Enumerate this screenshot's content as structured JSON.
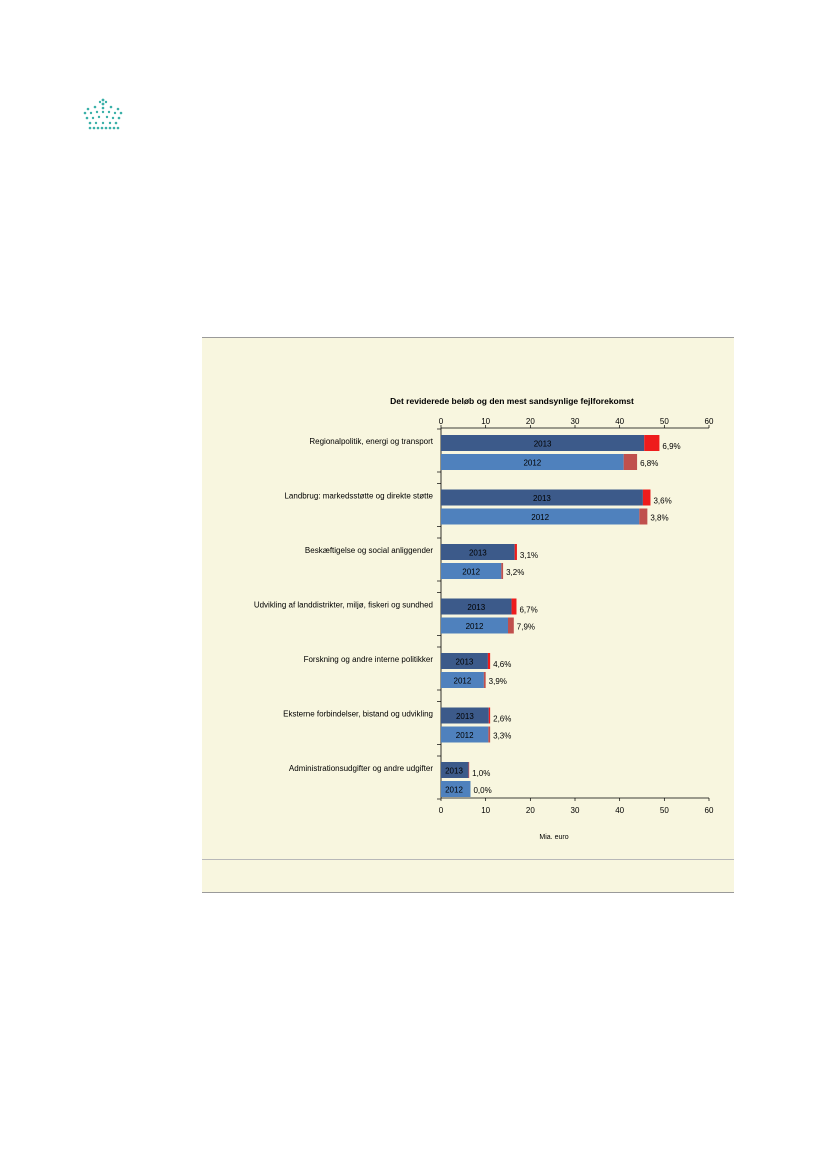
{
  "page": {
    "background": "#ffffff",
    "figure_background": "#f8f6df"
  },
  "logo": {
    "icon": "crown-icon",
    "color": "#3ab0a8"
  },
  "chart_data": {
    "type": "bar",
    "orientation": "horizontal",
    "stacked": true,
    "title": "Det reviderede beløb og den mest sandsynlige fejlforekomst",
    "xlabel": "Mia. euro",
    "ylabel": "",
    "xlim": [
      0,
      60
    ],
    "xticks": [
      "0",
      "10",
      "20",
      "30",
      "40",
      "50",
      "60"
    ],
    "grid": false,
    "legend": "none",
    "colors": {
      "2013_base": "#3c5a8a",
      "2013_error": "#ee1c1c",
      "2012_base": "#4f81bd",
      "2012_error": "#c0504d"
    },
    "categories": [
      {
        "label": "Regionalpolitik, energi og transport",
        "rows": [
          {
            "year": "2013",
            "value": 48.9,
            "error_rate": "6,9%",
            "error_value": 3.4
          },
          {
            "year": "2012",
            "value": 43.9,
            "error_rate": "6,8%",
            "error_value": 3.0
          }
        ]
      },
      {
        "label": "Landbrug: markedsstøtte og direkte støtte",
        "rows": [
          {
            "year": "2013",
            "value": 46.9,
            "error_rate": "3,6%",
            "error_value": 1.7
          },
          {
            "year": "2012",
            "value": 46.2,
            "error_rate": "3,8%",
            "error_value": 1.8
          }
        ]
      },
      {
        "label": "Beskæftigelse og social anliggender",
        "rows": [
          {
            "year": "2013",
            "value": 17.0,
            "error_rate": "3,1%",
            "error_value": 0.5
          },
          {
            "year": "2012",
            "value": 13.9,
            "error_rate": "3,2%",
            "error_value": 0.4
          }
        ]
      },
      {
        "label": "Udvikling af landdistrikter, miljø, fiskeri og sundhed",
        "rows": [
          {
            "year": "2013",
            "value": 16.9,
            "error_rate": "6,7%",
            "error_value": 1.1
          },
          {
            "year": "2012",
            "value": 16.3,
            "error_rate": "7,9%",
            "error_value": 1.3
          }
        ]
      },
      {
        "label": "Forskning og andre interne politikker",
        "rows": [
          {
            "year": "2013",
            "value": 11.0,
            "error_rate": "4,6%",
            "error_value": 0.5
          },
          {
            "year": "2012",
            "value": 10.0,
            "error_rate": "3,9%",
            "error_value": 0.4
          }
        ]
      },
      {
        "label": "Eksterne forbindelser, bistand og udvikling",
        "rows": [
          {
            "year": "2013",
            "value": 11.0,
            "error_rate": "2,6%",
            "error_value": 0.3
          },
          {
            "year": "2012",
            "value": 11.0,
            "error_rate": "3,3%",
            "error_value": 0.4
          }
        ]
      },
      {
        "label": "Administrationsudgifter og andre udgifter",
        "rows": [
          {
            "year": "2013",
            "value": 6.3,
            "error_rate": "1,0%",
            "error_value": 0.1
          },
          {
            "year": "2012",
            "value": 6.6,
            "error_rate": "0,0%",
            "error_value": 0.0
          }
        ]
      }
    ]
  }
}
